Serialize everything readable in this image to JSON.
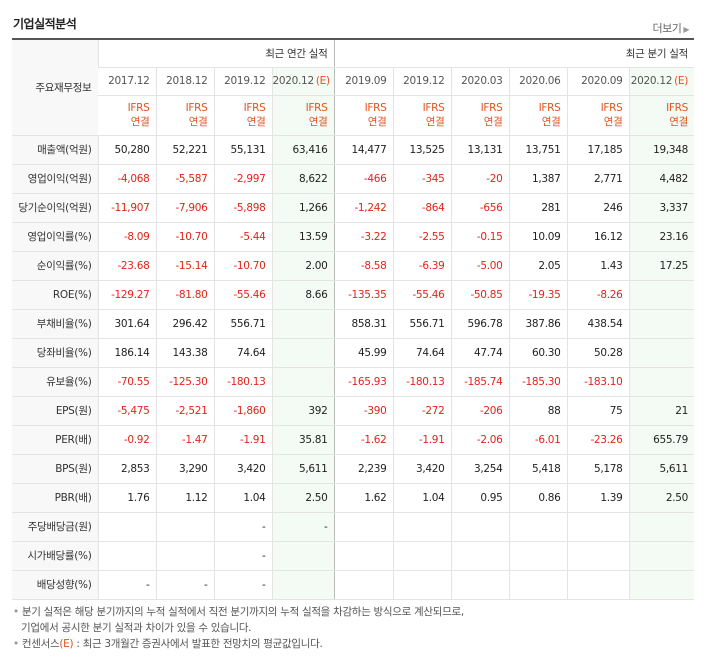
{
  "title": "기업실적분석",
  "more_label": "더보기",
  "corner_label": "주요재무정보",
  "group_annual": "최근 연간 실적",
  "group_quarter": "최근 분기 실적",
  "periods": [
    "2017.12",
    "2018.12",
    "2019.12",
    "2020.12",
    "2019.09",
    "2019.12",
    "2020.03",
    "2020.06",
    "2020.09",
    "2020.12"
  ],
  "estimate_tag": "(E)",
  "ifrs_line1": "IFRS",
  "ifrs_line2": "연결",
  "rows": [
    {
      "label": "매출액(억원)",
      "values": [
        "50,280",
        "52,221",
        "55,131",
        "63,416",
        "14,477",
        "13,525",
        "13,131",
        "13,751",
        "17,185",
        "19,348"
      ]
    },
    {
      "label": "영업이익(억원)",
      "values": [
        "-4,068",
        "-5,587",
        "-2,997",
        "8,622",
        "-466",
        "-345",
        "-20",
        "1,387",
        "2,771",
        "4,482"
      ]
    },
    {
      "label": "당기순이익(억원)",
      "values": [
        "-11,907",
        "-7,906",
        "-5,898",
        "1,266",
        "-1,242",
        "-864",
        "-656",
        "281",
        "246",
        "3,337"
      ]
    },
    {
      "label": "영업이익률(%)",
      "values": [
        "-8.09",
        "-10.70",
        "-5.44",
        "13.59",
        "-3.22",
        "-2.55",
        "-0.15",
        "10.09",
        "16.12",
        "23.16"
      ]
    },
    {
      "label": "순이익률(%)",
      "values": [
        "-23.68",
        "-15.14",
        "-10.70",
        "2.00",
        "-8.58",
        "-6.39",
        "-5.00",
        "2.05",
        "1.43",
        "17.25"
      ]
    },
    {
      "label": "ROE(%)",
      "values": [
        "-129.27",
        "-81.80",
        "-55.46",
        "8.66",
        "-135.35",
        "-55.46",
        "-50.85",
        "-19.35",
        "-8.26",
        ""
      ]
    },
    {
      "label": "부채비율(%)",
      "values": [
        "301.64",
        "296.42",
        "556.71",
        "",
        "858.31",
        "556.71",
        "596.78",
        "387.86",
        "438.54",
        ""
      ]
    },
    {
      "label": "당좌비율(%)",
      "values": [
        "186.14",
        "143.38",
        "74.64",
        "",
        "45.99",
        "74.64",
        "47.74",
        "60.30",
        "50.28",
        ""
      ]
    },
    {
      "label": "유보율(%)",
      "values": [
        "-70.55",
        "-125.30",
        "-180.13",
        "",
        "-165.93",
        "-180.13",
        "-185.74",
        "-185.30",
        "-183.10",
        ""
      ]
    },
    {
      "label": "EPS(원)",
      "values": [
        "-5,475",
        "-2,521",
        "-1,860",
        "392",
        "-390",
        "-272",
        "-206",
        "88",
        "75",
        "21"
      ]
    },
    {
      "label": "PER(배)",
      "values": [
        "-0.92",
        "-1.47",
        "-1.91",
        "35.81",
        "-1.62",
        "-1.91",
        "-2.06",
        "-6.01",
        "-23.26",
        "655.79"
      ]
    },
    {
      "label": "BPS(원)",
      "values": [
        "2,853",
        "3,290",
        "3,420",
        "5,611",
        "2,239",
        "3,420",
        "3,254",
        "5,418",
        "5,178",
        "5,611"
      ]
    },
    {
      "label": "PBR(배)",
      "values": [
        "1.76",
        "1.12",
        "1.04",
        "2.50",
        "1.62",
        "1.04",
        "0.95",
        "0.86",
        "1.39",
        "2.50"
      ]
    },
    {
      "label": "주당배당금(원)",
      "values": [
        "",
        "",
        "-",
        "-",
        "",
        "",
        "",
        "",
        "",
        ""
      ]
    },
    {
      "label": "시가배당률(%)",
      "values": [
        "",
        "",
        "-",
        "",
        "",
        "",
        "",
        "",
        "",
        ""
      ]
    },
    {
      "label": "배당성향(%)",
      "values": [
        "-",
        "-",
        "-",
        "",
        "",
        "",
        "",
        "",
        "",
        ""
      ]
    }
  ],
  "notes": {
    "n1a": "분기 실적은 해당 분기까지의 누적 실적에서 직전 분기까지의 누적 실적을 차감하는 방식으로 계산되므로,",
    "n1b": "기업에서 공시한 분기 실적과 차이가 있을 수 있습니다.",
    "n2_prefix": "컨센서스",
    "n2_tag": "(E)",
    "n2_text": " : 최근 3개월간 증권사에서 발표한 전망치의 평균값입니다."
  },
  "colors": {
    "negative": "#e2231a",
    "ifrs": "#e2531e",
    "estimate_bg": "#f4faf4"
  }
}
